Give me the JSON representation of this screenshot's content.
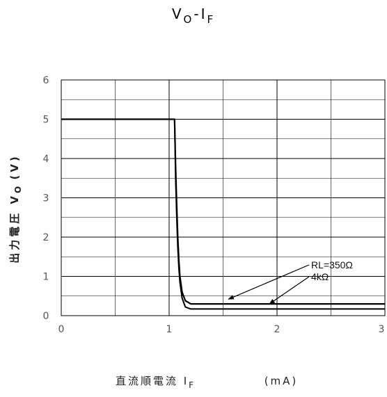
{
  "chart_data": {
    "type": "line",
    "title": {
      "main": "V",
      "main_sub": "O",
      "sep": "-I",
      "sep_sub": "F"
    },
    "ylabel": {
      "text": "出力電圧 V",
      "sub": "O",
      "unit": " (V)"
    },
    "xlabel": {
      "text": "直流順電流 I",
      "sub": "F",
      "unit": "(mA)"
    },
    "xlim": [
      0,
      3
    ],
    "ylim": [
      0,
      6
    ],
    "xticks": [
      0,
      1,
      2,
      3
    ],
    "yticks": [
      0,
      1,
      2,
      3,
      4,
      5,
      6
    ],
    "x_minor_step": 0.5,
    "y_minor_step": 0.5,
    "grid": true,
    "series": [
      {
        "name": "RL=350Ω",
        "x": [
          0,
          1.05,
          1.06,
          1.07,
          1.08,
          1.09,
          1.1,
          1.12,
          1.15,
          1.2,
          1.25,
          1.3,
          1.5,
          2,
          2.5,
          3
        ],
        "y": [
          5,
          5,
          3.8,
          2.8,
          2.0,
          1.4,
          1.0,
          0.6,
          0.38,
          0.3,
          0.3,
          0.3,
          0.3,
          0.3,
          0.3,
          0.3
        ]
      },
      {
        "name": "4kΩ",
        "x": [
          0,
          1.05,
          1.06,
          1.07,
          1.08,
          1.09,
          1.1,
          1.12,
          1.15,
          1.2,
          1.25,
          1.3,
          1.5,
          2,
          2.5,
          3
        ],
        "y": [
          5,
          5,
          3.5,
          2.5,
          1.75,
          1.2,
          0.85,
          0.45,
          0.22,
          0.17,
          0.17,
          0.17,
          0.17,
          0.17,
          0.17,
          0.17
        ]
      }
    ],
    "annotations": [
      {
        "text": "RL=350Ω",
        "target_x": 1.55,
        "target_y": 0.42,
        "series": 0
      },
      {
        "text": "4kΩ",
        "target_x": 1.93,
        "target_y": 0.3,
        "series": 1
      }
    ]
  },
  "colors": {
    "line": "#000000",
    "grid": "#000000",
    "tick": "#555555"
  }
}
